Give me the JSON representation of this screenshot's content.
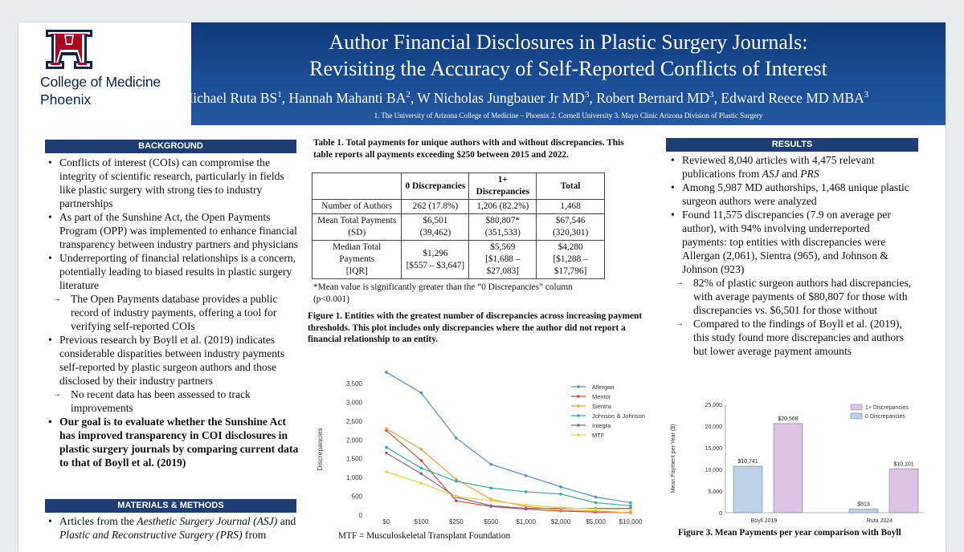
{
  "header": {
    "logo_college": "College of Medicine",
    "logo_phoenix": "Phoenix",
    "title_line1": "Author Financial Disclosures in Plastic Surgery Journals:",
    "title_line2": "Revisiting the Accuracy of Self-Reported Conflicts of Interest",
    "authors": [
      {
        "name": "Michael Ruta BS",
        "sup": "1"
      },
      {
        "name": "Hannah Mahanti BA",
        "sup": "2"
      },
      {
        "name": "W Nicholas Jungbauer Jr MD",
        "sup": "3"
      },
      {
        "name": "Robert Bernard MD",
        "sup": "3"
      },
      {
        "name": "Edward Reece MD MBA",
        "sup": "3"
      }
    ],
    "affiliations": "1.   The University of Arizona College of Medicine – Phoenix   2. Cornell University  3. Mayo Clinic Arizona Division of Plastic Surgery"
  },
  "background": {
    "heading": "BACKGROUND",
    "items": [
      {
        "kind": "b",
        "text": "Conflicts of interest (COIs) can compromise the integrity of scientific research, particularly in fields like plastic surgery with strong ties to industry partnerships"
      },
      {
        "kind": "b",
        "text": "As part of the Sunshine Act, the Open Payments Program (OPP) was implemented to enhance financial transparency between industry partners and physicians"
      },
      {
        "kind": "b",
        "text": "Underreporting of financial relationships is a concern, potentially leading to biased results in plastic surgery literature"
      },
      {
        "kind": "a",
        "text": "The Open Payments database provides a public record of industry payments, offering a tool for verifying self-reported COIs"
      },
      {
        "kind": "b",
        "text": "Previous research by Boyll et al. (2019) indicates considerable disparities between industry payments self-reported by plastic surgeon authors and those disclosed by their industry partners"
      },
      {
        "kind": "a",
        "text": "No recent data has been assessed to track improvements"
      },
      {
        "kind": "b bold",
        "text": "Our goal is to evaluate whether the Sunshine Act has improved transparency in COI disclosures in plastic surgery journals by comparing current data to that of Boyll et al. (2019)"
      }
    ]
  },
  "methods": {
    "heading": "MATERIALS & METHODS",
    "item_pre": "Articles from the ",
    "journal1": "Aesthetic Surgery Journal (ASJ)",
    "item_mid": " and ",
    "journal2": "Plastic and Reconstructive Surgery (PRS)",
    "item_post": " from"
  },
  "table1": {
    "caption": "Table 1. Total payments for unique authors with and without discrepancies. This table reports all payments exceeding $250 between 2015 and 2022.",
    "col_zero": "0 Discrepancies",
    "col_one_a": "1+",
    "col_one_b": "Discrepancies",
    "col_total": "Total",
    "r1_label": "Number of Authors",
    "r1_c1": "262 (17.8%)",
    "r1_c2": "1,206 (82.2%)",
    "r1_c3": "1,468",
    "r2_label_a": "Mean Total Payments",
    "r2_label_b": "(SD)",
    "r2_c1a": "$6,501",
    "r2_c1b": "(39,462)",
    "r2_c2a": "$80,807*",
    "r2_c2b": "(351,533)",
    "r2_c3a": "$67,546",
    "r2_c3b": "(320,301)",
    "r3_label_a": "Median Total Payments",
    "r3_label_b": "[IQR]",
    "r3_c1a": "$1,296",
    "r3_c1b": "[$557 – $3,647]",
    "r3_c2a": "$5,569",
    "r3_c2b": "[$1,688 –",
    "r3_c2c": "$27,083]",
    "r3_c3a": "$4,280",
    "r3_c3b": "[$1,288 –",
    "r3_c3c": "$17,796]",
    "note": "*Mean value is significantly greater than the “0 Discrepancies” column (p<0.001)"
  },
  "figure1": {
    "caption": "Figure 1. Entities with the greatest number of discrepancies across increasing payment thresholds. This plot includes only discrepancies where the author did not report a financial relationship to an entity.",
    "note": "MTF = Musculoskeletal Transplant Foundation"
  },
  "results": {
    "heading": "RESULTS",
    "r1_pre": "Reviewed 8,040 articles with 4,475 relevant publications from ",
    "r1_asj": "ASJ",
    "r1_and": " and ",
    "r1_prs": "PRS",
    "r2": "Among 5,987 MD authorships, 1,468 unique plastic surgeon authors were analyzed",
    "r3": "Found 11,575 discrepancies (7.9 on average per author), with 94% involving underreported payments: top entities with discrepancies were Allergan (2,061), Sientra (965), and Johnson & Johnson (923)",
    "r4": "82% of plastic surgeon authors had discrepancies, with average payments of $80,807 for those with discrepancies vs. $6,501 for those without",
    "r5": "Compared to the findings of Boyll et al. (2019), this study found more discrepancies and authors but lower average payment amounts"
  },
  "figure3": {
    "caption": "Figure 3. Mean Payments per year comparison with Boyll"
  },
  "colors": {
    "header_dark": "#0f3a7a",
    "section_bar": "#1d3d74",
    "allergan": "#4f8fd6",
    "mentor": "#d84b3c",
    "sientra": "#f0a33a",
    "jnj": "#2fb0a2",
    "integra": "#8e5ea8",
    "mtf": "#e6d43a",
    "bar_zero": "#bcd2e8",
    "bar_one": "#dcc3e2"
  },
  "chart_data": [
    {
      "type": "line",
      "xlabel": "Payment Threshold",
      "ylabel": "Discrepancies",
      "categories": [
        "$0",
        "$100",
        "$250",
        "$500",
        "$1,000",
        "$2,000",
        "$5,000",
        "$10,000"
      ],
      "ylim": [
        0,
        3500
      ],
      "yticks": [
        "0",
        "500",
        "1,000",
        "1,500",
        "2,000",
        "2,500",
        "3,000",
        "3,500"
      ],
      "series": [
        {
          "name": "Allergan",
          "color": "#4f8fd6",
          "values": [
            3800,
            3250,
            2050,
            1350,
            1050,
            750,
            480,
            330
          ]
        },
        {
          "name": "Mentor",
          "color": "#d84b3c",
          "values": [
            2250,
            1450,
            380,
            230,
            160,
            110,
            80,
            70
          ]
        },
        {
          "name": "Sientra",
          "color": "#f0a33a",
          "values": [
            2300,
            1750,
            950,
            420,
            230,
            140,
            110,
            60
          ]
        },
        {
          "name": "Johnson & Johnson",
          "color": "#2fb0a2",
          "values": [
            1800,
            1250,
            900,
            720,
            620,
            560,
            330,
            250
          ]
        },
        {
          "name": "Integra",
          "color": "#8e5ea8",
          "values": [
            1650,
            1100,
            480,
            250,
            180,
            180,
            180,
            180
          ]
        },
        {
          "name": "MTF",
          "color": "#e6d43a",
          "values": [
            1150,
            850,
            500,
            380,
            270,
            200,
            160,
            140
          ]
        }
      ]
    },
    {
      "type": "bar",
      "ylabel": "Mean Payment per Year ($)",
      "categories": [
        "Boyll 2019",
        "Ruta 2024"
      ],
      "ylim": [
        0,
        25000
      ],
      "yticks": [
        "0",
        "5,000",
        "10,000",
        "15,000",
        "20,000",
        "25,000"
      ],
      "series": [
        {
          "name": "0 Discrepancies",
          "color": "#bcd2e8",
          "values": [
            10741,
            813
          ],
          "labels": [
            "$10,741",
            "$813"
          ]
        },
        {
          "name": "1+ Discrepancies",
          "color": "#dcc3e2",
          "values": [
            20568,
            10101
          ],
          "labels": [
            "$20,568",
            "$10,101"
          ]
        }
      ]
    }
  ]
}
